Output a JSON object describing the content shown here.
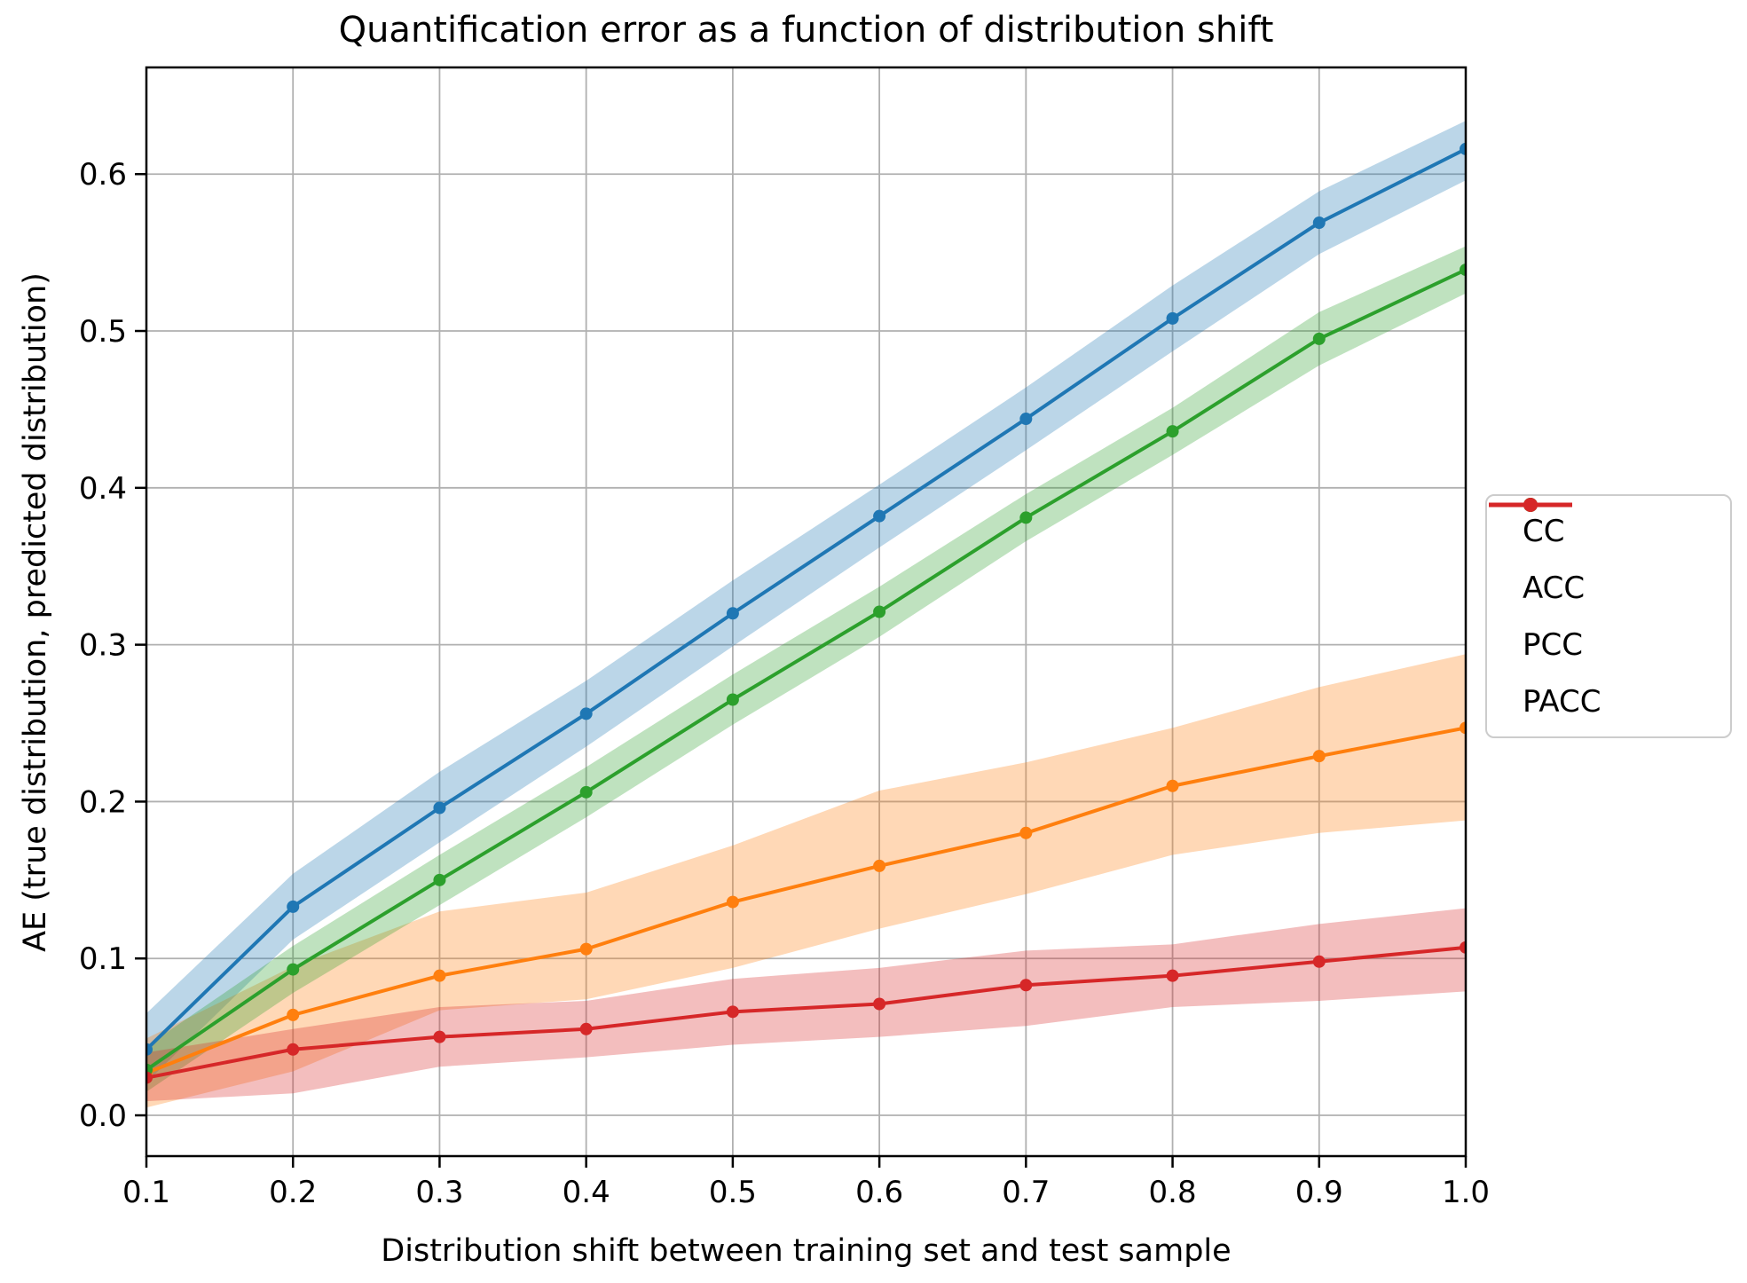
{
  "figure": {
    "title": "Quantification error as a function of distribution shift",
    "x_axis_label": "Distribution shift between training set and test sample",
    "y_axis_label": "AE (true distribution, predicted distribution)"
  },
  "legend": {
    "position": "center-right-outside",
    "entries": [
      "CC",
      "ACC",
      "PCC",
      "PACC"
    ]
  },
  "colors": {
    "background": "#ffffff",
    "grid": "#b0b0b0",
    "spine": "#000000",
    "legend_border": "#cccccc",
    "cc": "#1f77b4",
    "acc": "#ff7f0e",
    "pcc": "#2ca02c",
    "pacc": "#d62728"
  },
  "chart_data": {
    "type": "line",
    "title": "Quantification error as a function of distribution shift",
    "xlabel": "Distribution shift between training set and test sample",
    "ylabel": "AE (true distribution, predicted distribution)",
    "grid": true,
    "legend_position": "center right, outside axes",
    "band_opacity": 0.3,
    "xlim": [
      0.1,
      1.0
    ],
    "ylim": [
      -0.026,
      0.668
    ],
    "x": [
      0.1,
      0.2,
      0.3,
      0.4,
      0.5,
      0.6,
      0.7,
      0.8,
      0.9,
      1.0
    ],
    "x_ticks": [
      0.1,
      0.2,
      0.3,
      0.4,
      0.5,
      0.6,
      0.7,
      0.8,
      0.9,
      1.0
    ],
    "x_tick_labels": [
      "0.1",
      "0.2",
      "0.3",
      "0.4",
      "0.5",
      "0.6",
      "0.7",
      "0.8",
      "0.9",
      "1.0"
    ],
    "y_ticks": [
      0.0,
      0.1,
      0.2,
      0.3,
      0.4,
      0.5,
      0.6
    ],
    "y_tick_labels": [
      "0.0",
      "0.1",
      "0.2",
      "0.3",
      "0.4",
      "0.5",
      "0.6"
    ],
    "series": [
      {
        "name": "CC",
        "color": "#1f77b4",
        "values": [
          0.042,
          0.133,
          0.196,
          0.256,
          0.32,
          0.382,
          0.444,
          0.508,
          0.569,
          0.616
        ],
        "band_lower": [
          0.021,
          0.112,
          0.174,
          0.235,
          0.299,
          0.362,
          0.424,
          0.487,
          0.549,
          0.596
        ],
        "band_upper": [
          0.065,
          0.154,
          0.219,
          0.277,
          0.341,
          0.402,
          0.464,
          0.529,
          0.589,
          0.634
        ]
      },
      {
        "name": "ACC",
        "color": "#ff7f0e",
        "values": [
          0.027,
          0.064,
          0.089,
          0.106,
          0.136,
          0.159,
          0.18,
          0.21,
          0.229,
          0.247
        ],
        "band_lower": [
          0.005,
          0.028,
          0.067,
          0.074,
          0.094,
          0.119,
          0.141,
          0.166,
          0.18,
          0.188
        ],
        "band_upper": [
          0.049,
          0.095,
          0.13,
          0.142,
          0.172,
          0.207,
          0.225,
          0.247,
          0.273,
          0.294
        ]
      },
      {
        "name": "PCC",
        "color": "#2ca02c",
        "values": [
          0.029,
          0.093,
          0.15,
          0.206,
          0.265,
          0.321,
          0.381,
          0.436,
          0.495,
          0.539
        ],
        "band_lower": [
          0.015,
          0.078,
          0.134,
          0.19,
          0.249,
          0.305,
          0.366,
          0.421,
          0.478,
          0.524
        ],
        "band_upper": [
          0.044,
          0.108,
          0.166,
          0.222,
          0.281,
          0.337,
          0.396,
          0.451,
          0.512,
          0.554
        ]
      },
      {
        "name": "PACC",
        "color": "#d62728",
        "values": [
          0.024,
          0.042,
          0.05,
          0.055,
          0.066,
          0.071,
          0.083,
          0.089,
          0.098,
          0.107
        ],
        "band_lower": [
          0.009,
          0.014,
          0.031,
          0.037,
          0.045,
          0.05,
          0.057,
          0.069,
          0.073,
          0.079
        ],
        "band_upper": [
          0.04,
          0.055,
          0.069,
          0.073,
          0.087,
          0.094,
          0.105,
          0.109,
          0.122,
          0.132
        ]
      }
    ]
  }
}
